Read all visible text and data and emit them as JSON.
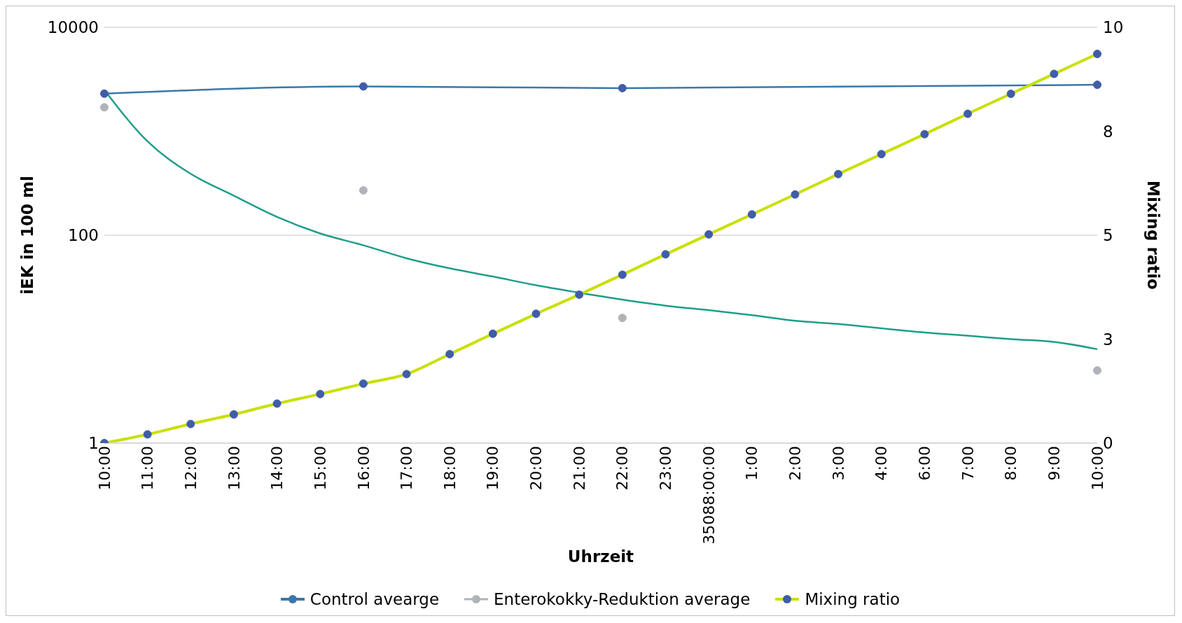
{
  "chart_data": {
    "type": "line",
    "xlabel": "Uhrzeit",
    "ylabel": "iEK in 100 ml",
    "y2label": "Mixing ratio",
    "categories": [
      "10:00",
      "11:00",
      "12:00",
      "13:00",
      "14:00",
      "15:00",
      "16:00",
      "17:00",
      "18:00",
      "19:00",
      "20:00",
      "21:00",
      "22:00",
      "23:00",
      "35088:00:00",
      "1:00",
      "2:00",
      "3:00",
      "4:00",
      "6:00",
      "7:00",
      "8:00",
      "9:00",
      "10:00"
    ],
    "series": [
      {
        "name": "Control avearge",
        "color": "#3a78a8",
        "marker": "circle",
        "values": [
          2300,
          null,
          null,
          null,
          null,
          null,
          2700,
          null,
          null,
          null,
          null,
          null,
          2600,
          null,
          null,
          null,
          null,
          null,
          null,
          null,
          null,
          null,
          null,
          2800
        ]
      },
      {
        "name": "Enterokokky-Reduktion average",
        "type": "scatter",
        "color": "#b0b4b8",
        "marker": "circle",
        "values": [
          1700,
          null,
          null,
          null,
          null,
          null,
          270,
          null,
          null,
          null,
          null,
          null,
          16,
          null,
          null,
          null,
          null,
          null,
          null,
          null,
          null,
          null,
          null,
          5
        ]
      },
      {
        "type": "line",
        "color": "#1e9e8a",
        "marker": "none",
        "values": [
          2500,
          800,
          390,
          240,
          150,
          104,
          80,
          60,
          48,
          40,
          33,
          28,
          24,
          21,
          19,
          17,
          15,
          14,
          12.7,
          11.6,
          10.8,
          10,
          9.4,
          8
        ]
      },
      {
        "name": "Mixing ratio",
        "axis": "y2",
        "color": "#c8e000",
        "marker": "circle",
        "values": [
          0,
          0.21,
          0.46,
          0.69,
          0.95,
          1.18,
          1.43,
          1.66,
          2.14,
          2.63,
          3.11,
          3.57,
          4.05,
          4.54,
          5.02,
          5.5,
          5.98,
          6.47,
          6.95,
          7.43,
          7.92,
          8.4,
          8.88,
          9.36
        ]
      }
    ],
    "log": true,
    "ylim": [
      1,
      10000
    ],
    "yticks": [
      1,
      100,
      10000
    ],
    "y2lim": [
      0,
      10
    ],
    "y2ticks": [
      0,
      {
        "value": 2.5,
        "label": "3"
      },
      5,
      {
        "value": 7.5,
        "label": "8"
      },
      10
    ],
    "grid": "y",
    "legend": "bottom"
  }
}
